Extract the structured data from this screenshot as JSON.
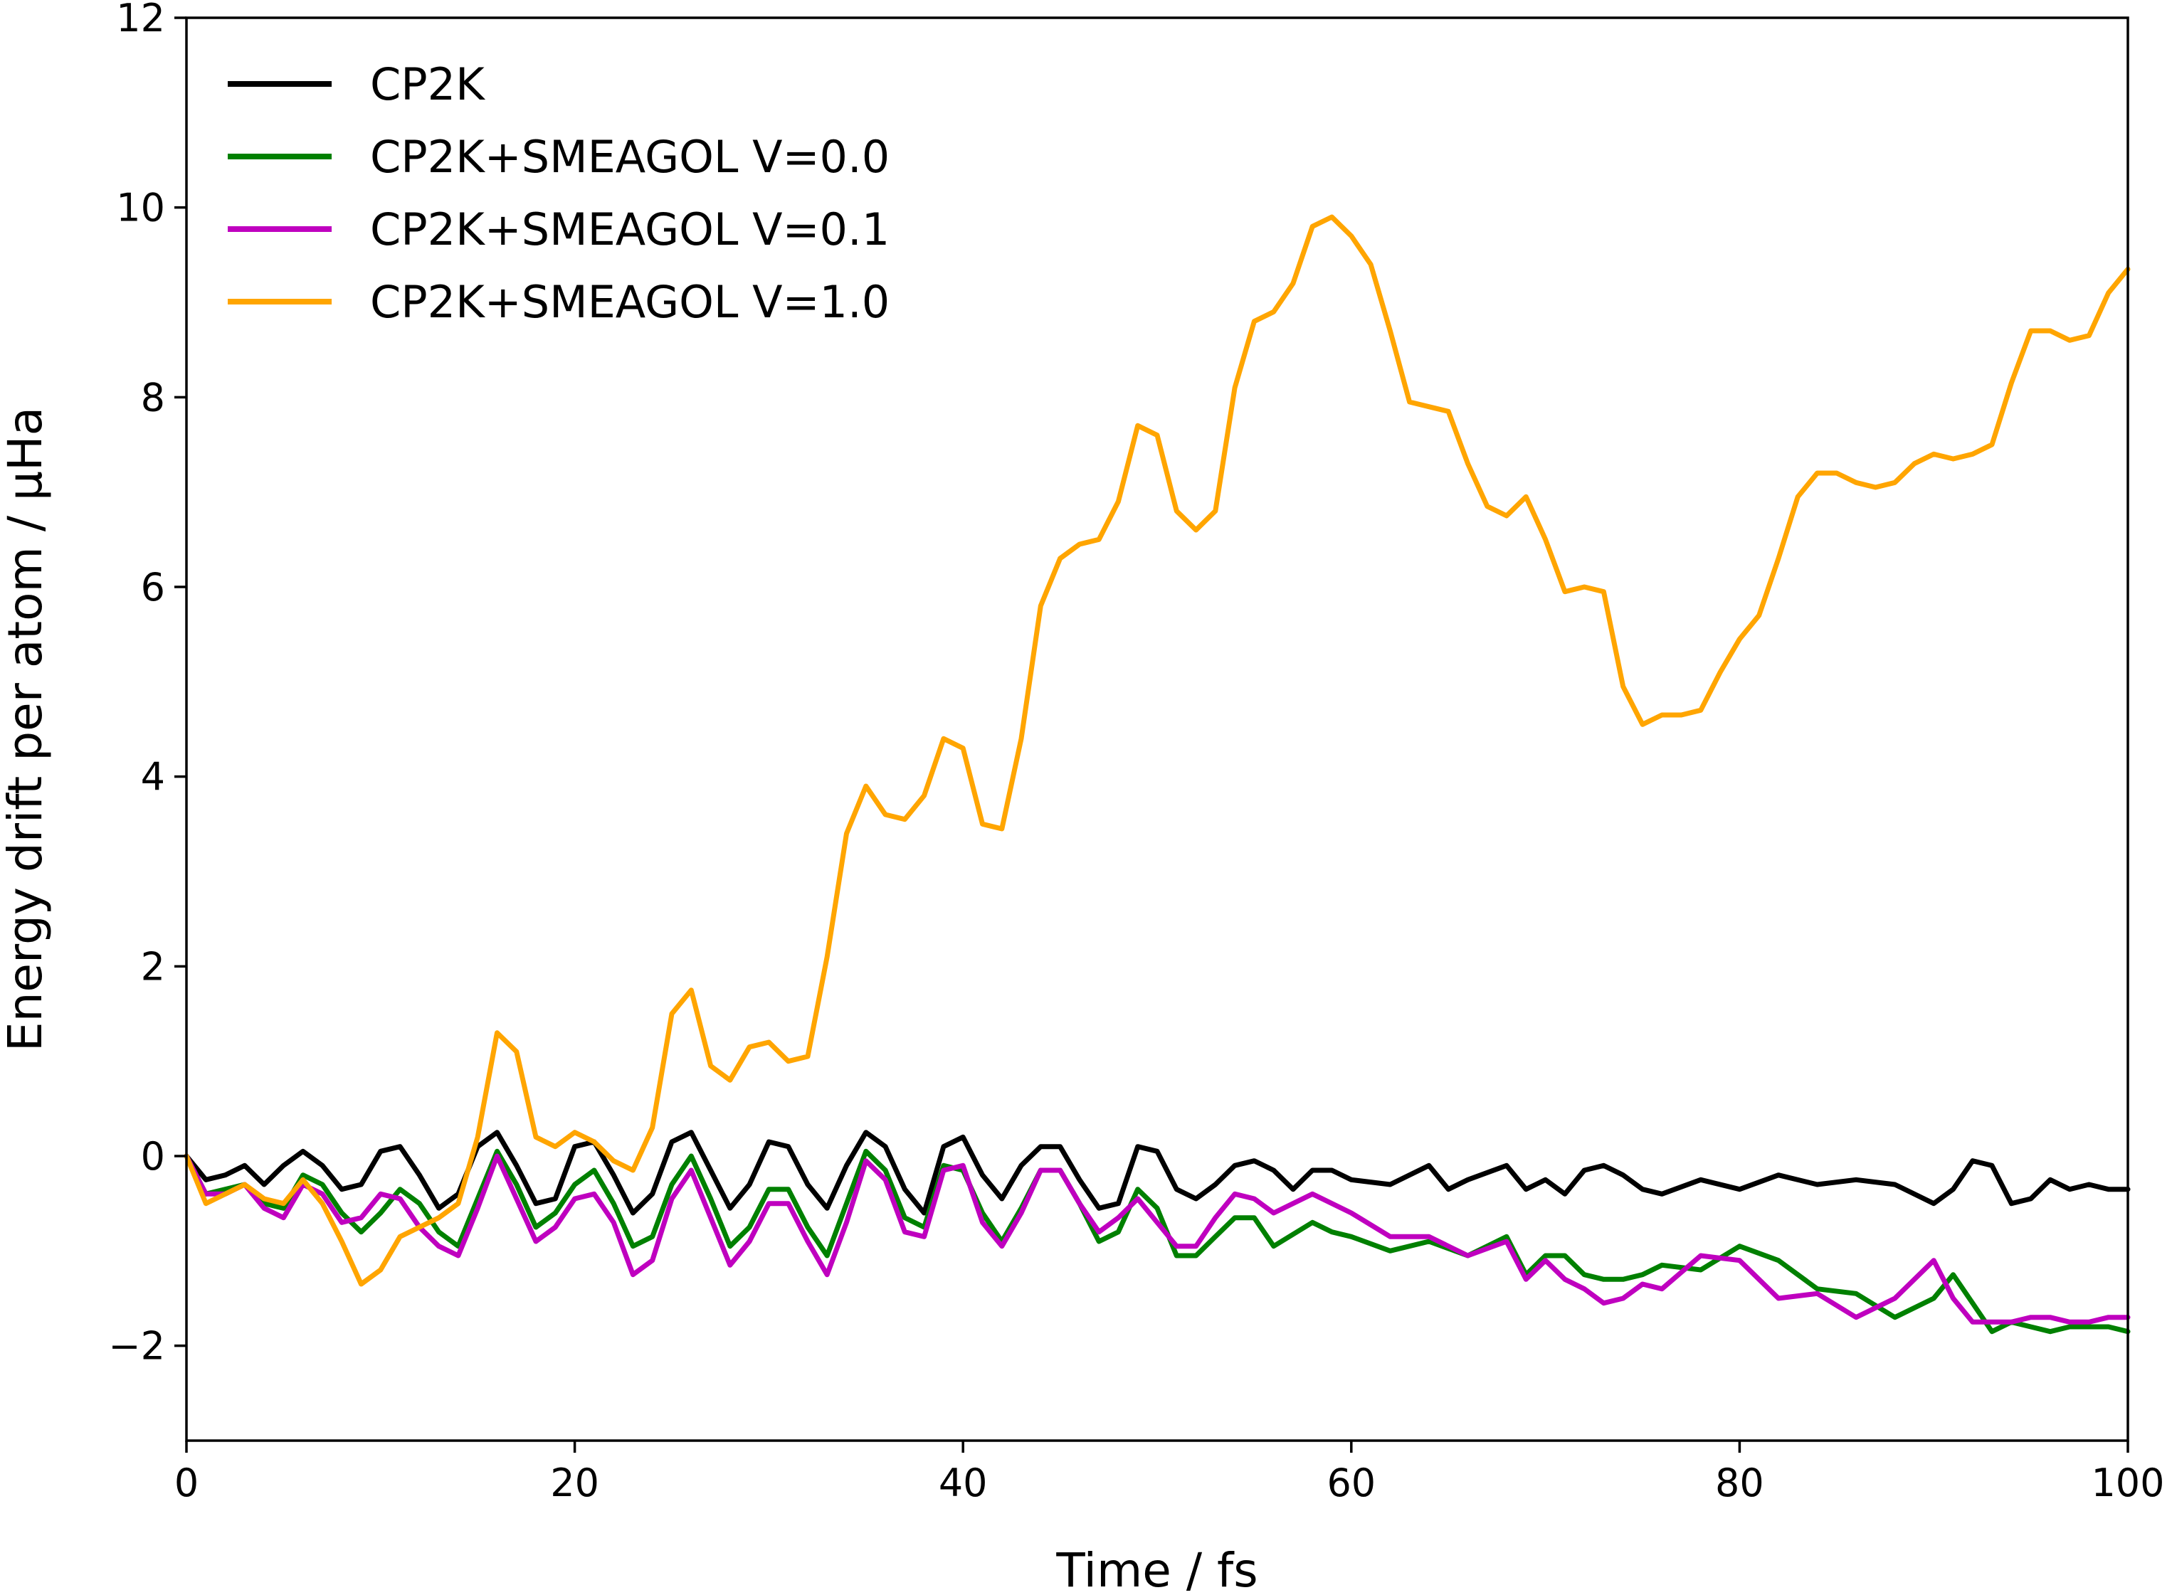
{
  "chart_data": {
    "type": "line",
    "xlabel": "Time / fs",
    "ylabel": "Energy drift per atom / μHa",
    "xlim": [
      0,
      100
    ],
    "ylim": [
      -3,
      12
    ],
    "xticks": [
      0,
      20,
      40,
      60,
      80,
      100
    ],
    "xtick_labels": [
      "0",
      "20",
      "40",
      "60",
      "80",
      "100"
    ],
    "yticks": [
      -2,
      0,
      2,
      4,
      6,
      8,
      10,
      12
    ],
    "ytick_labels": [
      "−2",
      "0",
      "2",
      "4",
      "6",
      "8",
      "10",
      "12"
    ],
    "grid": false,
    "legend_position": "upper-left",
    "series": [
      {
        "name": "CP2K",
        "color": "#000000",
        "x": [
          0,
          1,
          2,
          3,
          4,
          5,
          6,
          7,
          8,
          9,
          10,
          11,
          12,
          13,
          14,
          15,
          16,
          17,
          18,
          19,
          20,
          21,
          22,
          23,
          24,
          25,
          26,
          27,
          28,
          29,
          30,
          31,
          32,
          33,
          34,
          35,
          36,
          37,
          38,
          39,
          40,
          41,
          42,
          43,
          44,
          45,
          46,
          47,
          48,
          49,
          50,
          51,
          52,
          53,
          54,
          55,
          56,
          57,
          58,
          59,
          60,
          62,
          64,
          65,
          66,
          68,
          69,
          70,
          71,
          72,
          73,
          74,
          75,
          76,
          78,
          80,
          82,
          84,
          86,
          88,
          90,
          91,
          92,
          93,
          94,
          95,
          96,
          97,
          98,
          99,
          100
        ],
        "y": [
          0,
          -0.25,
          -0.2,
          -0.1,
          -0.3,
          -0.1,
          0.05,
          -0.1,
          -0.35,
          -0.3,
          0.05,
          0.1,
          -0.2,
          -0.55,
          -0.4,
          0.1,
          0.25,
          -0.1,
          -0.5,
          -0.45,
          0.1,
          0.15,
          -0.2,
          -0.6,
          -0.4,
          0.15,
          0.25,
          -0.15,
          -0.55,
          -0.3,
          0.15,
          0.1,
          -0.3,
          -0.55,
          -0.1,
          0.25,
          0.1,
          -0.35,
          -0.6,
          0.1,
          0.2,
          -0.2,
          -0.45,
          -0.1,
          0.1,
          0.1,
          -0.25,
          -0.55,
          -0.5,
          0.1,
          0.05,
          -0.35,
          -0.45,
          -0.3,
          -0.1,
          -0.05,
          -0.15,
          -0.35,
          -0.15,
          -0.15,
          -0.25,
          -0.3,
          -0.1,
          -0.35,
          -0.25,
          -0.1,
          -0.35,
          -0.25,
          -0.4,
          -0.15,
          -0.1,
          -0.2,
          -0.35,
          -0.4,
          -0.25,
          -0.35,
          -0.2,
          -0.3,
          -0.25,
          -0.3,
          -0.5,
          -0.35,
          -0.05,
          -0.1,
          -0.5,
          -0.45,
          -0.25,
          -0.35,
          -0.3,
          -0.35,
          -0.35
        ]
      },
      {
        "name": "CP2K+SMEAGOL V=0.0",
        "color": "#008000",
        "x": [
          0,
          1,
          2,
          3,
          4,
          5,
          6,
          7,
          8,
          9,
          10,
          11,
          12,
          13,
          14,
          15,
          16,
          17,
          18,
          19,
          20,
          21,
          22,
          23,
          24,
          25,
          26,
          27,
          28,
          29,
          30,
          31,
          32,
          33,
          34,
          35,
          36,
          37,
          38,
          39,
          40,
          41,
          42,
          43,
          44,
          45,
          46,
          47,
          48,
          49,
          50,
          51,
          52,
          53,
          54,
          55,
          56,
          58,
          59,
          60,
          62,
          64,
          66,
          68,
          69,
          70,
          71,
          72,
          73,
          74,
          75,
          76,
          78,
          80,
          82,
          84,
          86,
          88,
          90,
          91,
          92,
          93,
          94,
          95,
          96,
          97,
          98,
          99,
          100
        ],
        "y": [
          0,
          -0.4,
          -0.35,
          -0.3,
          -0.5,
          -0.55,
          -0.2,
          -0.3,
          -0.6,
          -0.8,
          -0.6,
          -0.35,
          -0.5,
          -0.8,
          -0.95,
          -0.45,
          0.05,
          -0.3,
          -0.75,
          -0.6,
          -0.3,
          -0.15,
          -0.5,
          -0.95,
          -0.85,
          -0.3,
          0,
          -0.45,
          -0.95,
          -0.75,
          -0.35,
          -0.35,
          -0.75,
          -1.05,
          -0.5,
          0.05,
          -0.15,
          -0.65,
          -0.75,
          -0.1,
          -0.15,
          -0.6,
          -0.9,
          -0.55,
          -0.15,
          -0.15,
          -0.5,
          -0.9,
          -0.8,
          -0.35,
          -0.55,
          -1.05,
          -1.05,
          -0.85,
          -0.65,
          -0.65,
          -0.95,
          -0.7,
          -0.8,
          -0.85,
          -1,
          -0.9,
          -1.05,
          -0.85,
          -1.25,
          -1.05,
          -1.05,
          -1.25,
          -1.3,
          -1.3,
          -1.25,
          -1.15,
          -1.2,
          -0.95,
          -1.1,
          -1.4,
          -1.45,
          -1.7,
          -1.5,
          -1.25,
          -1.55,
          -1.85,
          -1.75,
          -1.8,
          -1.85,
          -1.8,
          -1.8,
          -1.8,
          -1.85
        ]
      },
      {
        "name": "CP2K+SMEAGOL V=0.1",
        "color": "#BF00BF",
        "x": [
          0,
          1,
          2,
          3,
          4,
          5,
          6,
          7,
          8,
          9,
          10,
          11,
          12,
          13,
          14,
          15,
          16,
          17,
          18,
          19,
          20,
          21,
          22,
          23,
          24,
          25,
          26,
          27,
          28,
          29,
          30,
          31,
          32,
          33,
          34,
          35,
          36,
          37,
          38,
          39,
          40,
          41,
          42,
          43,
          44,
          45,
          46,
          47,
          48,
          49,
          50,
          51,
          52,
          53,
          54,
          55,
          56,
          58,
          60,
          62,
          64,
          66,
          68,
          69,
          70,
          71,
          72,
          73,
          74,
          75,
          76,
          78,
          80,
          82,
          84,
          86,
          88,
          90,
          91,
          92,
          93,
          94,
          95,
          96,
          97,
          98,
          99,
          100
        ],
        "y": [
          0,
          -0.4,
          -0.4,
          -0.3,
          -0.55,
          -0.65,
          -0.3,
          -0.4,
          -0.7,
          -0.65,
          -0.4,
          -0.45,
          -0.75,
          -0.95,
          -1.05,
          -0.55,
          0,
          -0.45,
          -0.9,
          -0.75,
          -0.45,
          -0.4,
          -0.7,
          -1.25,
          -1.1,
          -0.45,
          -0.15,
          -0.65,
          -1.15,
          -0.9,
          -0.5,
          -0.5,
          -0.9,
          -1.25,
          -0.7,
          -0.05,
          -0.25,
          -0.8,
          -0.85,
          -0.15,
          -0.1,
          -0.7,
          -0.95,
          -0.6,
          -0.15,
          -0.15,
          -0.5,
          -0.8,
          -0.65,
          -0.45,
          -0.7,
          -0.95,
          -0.95,
          -0.65,
          -0.4,
          -0.45,
          -0.6,
          -0.4,
          -0.6,
          -0.85,
          -0.85,
          -1.05,
          -0.9,
          -1.3,
          -1.1,
          -1.3,
          -1.4,
          -1.55,
          -1.5,
          -1.35,
          -1.4,
          -1.05,
          -1.1,
          -1.5,
          -1.45,
          -1.7,
          -1.5,
          -1.1,
          -1.5,
          -1.75,
          -1.75,
          -1.75,
          -1.7,
          -1.7,
          -1.75,
          -1.75,
          -1.7,
          -1.7
        ]
      },
      {
        "name": "CP2K+SMEAGOL V=1.0",
        "color": "#FFA500",
        "x": [
          0,
          1,
          2,
          3,
          4,
          5,
          6,
          7,
          8,
          9,
          10,
          11,
          12,
          13,
          14,
          15,
          16,
          17,
          18,
          19,
          20,
          21,
          22,
          23,
          24,
          25,
          26,
          27,
          28,
          29,
          30,
          31,
          32,
          33,
          34,
          35,
          36,
          37,
          38,
          39,
          40,
          41,
          42,
          43,
          44,
          45,
          46,
          47,
          48,
          49,
          50,
          51,
          52,
          53,
          54,
          55,
          56,
          57,
          58,
          59,
          60,
          61,
          62,
          63,
          64,
          65,
          66,
          67,
          68,
          69,
          70,
          71,
          72,
          73,
          74,
          75,
          76,
          77,
          78,
          79,
          80,
          81,
          82,
          83,
          84,
          85,
          86,
          87,
          88,
          89,
          90,
          91,
          92,
          93,
          94,
          95,
          96,
          97,
          98,
          99,
          100
        ],
        "y": [
          0,
          -0.5,
          -0.4,
          -0.3,
          -0.45,
          -0.5,
          -0.25,
          -0.5,
          -0.9,
          -1.35,
          -1.2,
          -0.85,
          -0.75,
          -0.65,
          -0.5,
          0.2,
          1.3,
          1.1,
          0.2,
          0.1,
          0.25,
          0.15,
          -0.05,
          -0.15,
          0.3,
          1.5,
          1.75,
          0.95,
          0.8,
          1.15,
          1.2,
          1,
          1.05,
          2.1,
          3.4,
          3.9,
          3.6,
          3.55,
          3.8,
          4.4,
          4.3,
          3.5,
          3.45,
          4.4,
          5.8,
          6.3,
          6.45,
          6.5,
          6.9,
          7.7,
          7.6,
          6.8,
          6.6,
          6.8,
          8.1,
          8.8,
          8.9,
          9.2,
          9.8,
          9.9,
          9.7,
          9.4,
          8.7,
          7.95,
          7.9,
          7.85,
          7.3,
          6.85,
          6.75,
          6.95,
          6.5,
          5.95,
          6.0,
          5.95,
          4.95,
          4.55,
          4.65,
          4.65,
          4.7,
          5.1,
          5.45,
          5.7,
          6.3,
          6.95,
          7.2,
          7.2,
          7.1,
          7.05,
          7.1,
          7.3,
          7.4,
          7.35,
          7.4,
          7.5,
          8.15,
          8.7,
          8.7,
          8.6,
          8.65,
          9.1,
          9.35
        ]
      }
    ]
  }
}
